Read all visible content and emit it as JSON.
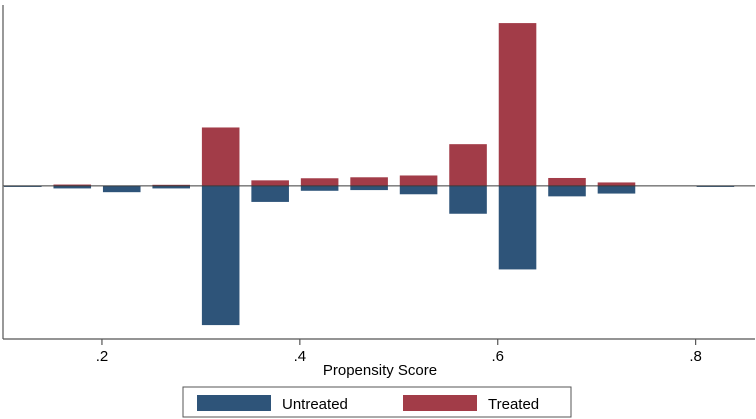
{
  "chart_data": {
    "type": "bar",
    "title": "",
    "xlabel": "Propensity Score",
    "ylabel": "",
    "orientation": "mirrored-vertical",
    "xlim": [
      0.1,
      0.86
    ],
    "ylim": [
      -1.1,
      1.3
    ],
    "bin_width": 0.04,
    "x_ticks": [
      {
        "value": 0.2,
        "label": ".2"
      },
      {
        "value": 0.4,
        "label": ".4"
      },
      {
        "value": 0.6,
        "label": ".6"
      },
      {
        "value": 0.8,
        "label": ".8"
      }
    ],
    "series": [
      {
        "name": "Untreated",
        "color": "#2e5479",
        "direction": "down",
        "x": [
          0.12,
          0.17,
          0.22,
          0.27,
          0.32,
          0.37,
          0.42,
          0.47,
          0.52,
          0.57,
          0.62,
          0.67,
          0.72,
          0.82
        ],
        "values": [
          0.005,
          0.018,
          0.045,
          0.018,
          1.0,
          0.115,
          0.035,
          0.03,
          0.06,
          0.2,
          0.6,
          0.075,
          0.055,
          0.005
        ]
      },
      {
        "name": "Treated",
        "color": "#a23c48",
        "direction": "up",
        "x": [
          0.17,
          0.27,
          0.32,
          0.37,
          0.42,
          0.47,
          0.52,
          0.57,
          0.62,
          0.67,
          0.72
        ],
        "values": [
          0.01,
          0.008,
          0.42,
          0.04,
          0.055,
          0.062,
          0.075,
          0.3,
          1.17,
          0.057,
          0.025
        ]
      }
    ],
    "legend": {
      "position": "bottom",
      "entries": [
        {
          "label": "Untreated",
          "color": "#2e5479"
        },
        {
          "label": "Treated",
          "color": "#a23c48"
        }
      ]
    }
  }
}
